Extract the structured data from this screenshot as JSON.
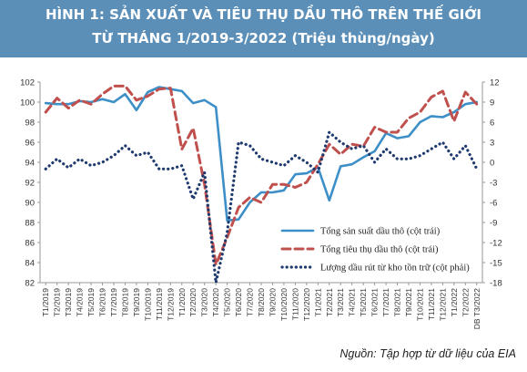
{
  "header": {
    "title_line1": "HÌNH 1: SẢN XUẤT VÀ TIÊU THỤ DẦU THÔ TRÊN THẾ GIỚI",
    "title_line2": "TỪ THÁNG 1/2019-3/2022 (Triệu thùng/ngày)"
  },
  "source_note": "Nguồn: Tập hợp từ dữ liệu của EIA",
  "chart_data": {
    "type": "line",
    "categories": [
      "T1/2019",
      "T2/2019",
      "T3/2019",
      "T4/2019",
      "T5/2019",
      "T6/2019",
      "T7/2019",
      "T8/2019",
      "T9/2019",
      "T10/2019",
      "T11/2019",
      "T12/2019",
      "T1/2020",
      "T2/2020",
      "T3/2020",
      "T4/2020",
      "T5/2020",
      "T6/2020",
      "T7/2020",
      "T8/2020",
      "T9/2020",
      "T10/2020",
      "T11/2020",
      "T12/2020",
      "T1/2021",
      "T2/2021",
      "T3/2021",
      "T4/2021",
      "T5/2021",
      "T6/2021",
      "T7/2021",
      "T8/2021",
      "T9/2021",
      "T10/2021",
      "T11/2021",
      "T12/2021",
      "T1/2022",
      "T2/2022",
      "DB T3/2022"
    ],
    "y_left": {
      "min": 82,
      "max": 102,
      "step": 2
    },
    "y_right": {
      "min": -18,
      "max": 12,
      "step": 3
    },
    "grid": false,
    "legend_position": "bottom-right",
    "series": [
      {
        "name": "Tổng sản suất dầu thô (cột trái)",
        "axis": "left",
        "style": "solid",
        "color": "#3d8fc7",
        "values": [
          99.9,
          99.8,
          99.8,
          100.1,
          100.0,
          100.3,
          100.0,
          100.8,
          99.2,
          101.0,
          101.5,
          101.3,
          101.1,
          99.9,
          100.2,
          99.5,
          88.2,
          88.3,
          90.0,
          91.0,
          91.0,
          91.2,
          92.8,
          92.9,
          93.5,
          90.2,
          93.6,
          93.8,
          94.5,
          95.1,
          96.9,
          96.4,
          96.6,
          98.0,
          98.6,
          98.5,
          99.0,
          99.8,
          100.0
        ]
      },
      {
        "name": "Tổng tiêu thụ dầu thô (cột trái)",
        "axis": "left",
        "style": "dashed",
        "color": "#c0504d",
        "values": [
          99.0,
          100.4,
          99.4,
          100.2,
          99.8,
          100.8,
          101.6,
          101.6,
          100.2,
          100.6,
          101.3,
          101.4,
          95.3,
          97.4,
          91.8,
          83.8,
          86.5,
          89.5,
          90.5,
          90.0,
          91.8,
          91.8,
          91.5,
          92.0,
          93.8,
          95.8,
          94.8,
          95.8,
          95.6,
          97.5,
          97.0,
          97.0,
          98.4,
          99.0,
          100.5,
          101.1,
          98.1,
          101.0,
          99.8
        ]
      },
      {
        "name": "Lượng dầu rút từ kho tồn trữ (cột phải)",
        "axis": "right",
        "style": "dotted",
        "color": "#1f3a6e",
        "values": [
          -1.0,
          0.5,
          -0.8,
          0.5,
          -0.5,
          0.0,
          1.0,
          2.5,
          1.0,
          1.5,
          -1.0,
          -1.0,
          -0.5,
          -5.5,
          -1.5,
          -18.0,
          -10.5,
          3.0,
          2.5,
          0.5,
          0.0,
          -0.5,
          1.0,
          0.0,
          -1.5,
          4.5,
          3.0,
          2.0,
          2.5,
          0.0,
          2.0,
          0.5,
          0.5,
          1.0,
          2.0,
          3.0,
          0.5,
          2.5,
          -1.0
        ]
      }
    ]
  }
}
